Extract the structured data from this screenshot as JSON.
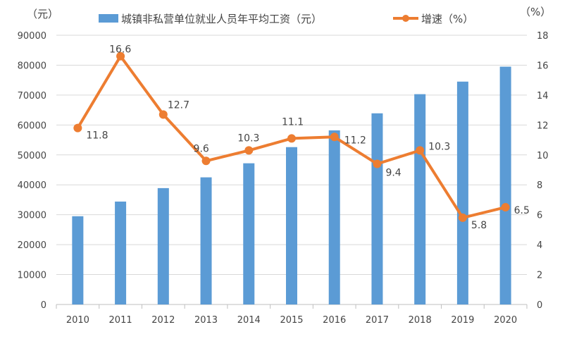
{
  "chart_data": {
    "type": "bar+line",
    "categories": [
      "2010",
      "2011",
      "2012",
      "2013",
      "2014",
      "2015",
      "2016",
      "2017",
      "2018",
      "2019",
      "2020"
    ],
    "series": [
      {
        "name": "城镇非私营单位就业人员年平均工资（元）",
        "type": "bar",
        "axis": "left",
        "color": "#5B9BD5",
        "values": [
          29500,
          34400,
          38900,
          42500,
          47200,
          52600,
          58200,
          63900,
          70300,
          74500,
          79500
        ]
      },
      {
        "name": "增速（%）",
        "type": "line",
        "axis": "right",
        "color": "#ED7D31",
        "values": [
          11.8,
          16.6,
          12.7,
          9.6,
          10.3,
          11.1,
          11.2,
          9.4,
          10.3,
          5.8,
          6.5
        ],
        "labels": [
          "11.8",
          "16.6",
          "12.7",
          "9.6",
          "10.3",
          "11.1",
          "11.2",
          "9.4",
          "10.3",
          "5.8",
          "6.5"
        ]
      }
    ],
    "y_left": {
      "label": "（元）",
      "ylim": [
        0,
        90000
      ],
      "ticks": [
        "0",
        "10000",
        "20000",
        "30000",
        "40000",
        "50000",
        "60000",
        "70000",
        "80000",
        "90000"
      ]
    },
    "y_right": {
      "label": "（%）",
      "ylim": [
        0,
        18
      ],
      "ticks": [
        "0",
        "2",
        "4",
        "6",
        "8",
        "10",
        "12",
        "14",
        "16",
        "18"
      ]
    },
    "grid": true,
    "legend": "top"
  }
}
